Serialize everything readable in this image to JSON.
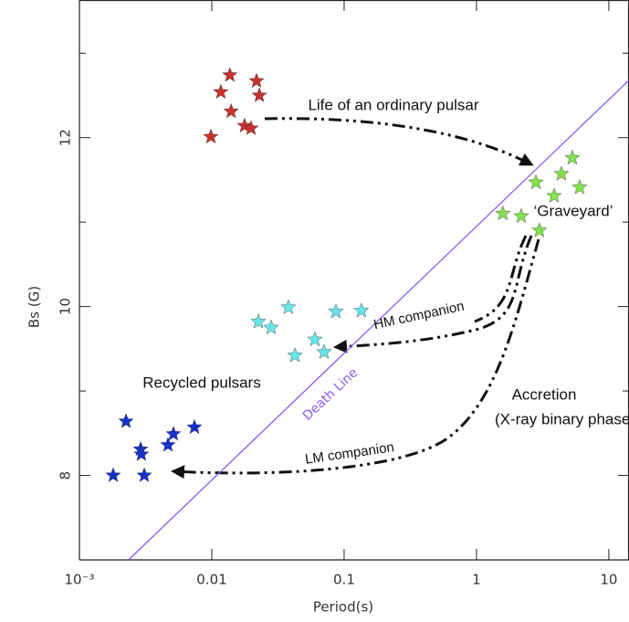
{
  "chart_data": {
    "type": "scatter",
    "x_label": "Period(s)",
    "y_label": "Bs (G)",
    "xscale": "log",
    "xlim": [
      0.001,
      14.2
    ],
    "ylim": [
      7.0,
      13.63
    ],
    "xticks": [
      {
        "value": 0.001,
        "label": "10⁻³"
      },
      0.01,
      0.1,
      1,
      10
    ],
    "yticks": [
      8,
      10,
      12
    ],
    "yminorticks": [
      9,
      11,
      13
    ],
    "marker": "star",
    "series": [
      {
        "color": "#c8322c",
        "x": [
          0.0137,
          0.0218,
          0.0117,
          0.0229,
          0.014,
          0.0177,
          0.0198,
          0.00984
        ],
        "values": [
          12.74,
          12.67,
          12.54,
          12.5,
          12.31,
          12.14,
          12.11,
          12.01
        ]
      },
      {
        "color": "#84e24e",
        "x": [
          5.3,
          2.81,
          4.38,
          6.01,
          3.86,
          1.58,
          2.18,
          2.99
        ],
        "values": [
          11.76,
          11.47,
          11.57,
          11.41,
          11.31,
          11.1,
          11.07,
          10.9
        ]
      },
      {
        "color": "#66e6ea",
        "x": [
          0.0379,
          0.135,
          0.0867,
          0.0225,
          0.0281,
          0.0601,
          0.0705,
          0.0425
        ],
        "values": [
          9.99,
          9.95,
          9.94,
          9.82,
          9.75,
          9.61,
          9.46,
          9.42
        ]
      },
      {
        "color": "#1732c8",
        "x": [
          0.00225,
          0.0074,
          0.0029,
          0.00513,
          0.00467,
          0.00294,
          0.00309,
          0.0018
        ],
        "values": [
          8.64,
          8.57,
          8.31,
          8.49,
          8.36,
          8.25,
          8.0,
          8.0
        ]
      }
    ],
    "lines": [
      {
        "name": "Death Line",
        "color": "#8a5cf0",
        "x": [
          0.00235,
          14.2
        ],
        "values": [
          7.0,
          12.68
        ]
      }
    ],
    "annotations": [
      "Life of an ordinary pulsar",
      "‘Graveyard’",
      "HM companion",
      "Recycled pulsars",
      "Accretion",
      "(X-ray binary phase)",
      "LM companion"
    ]
  }
}
